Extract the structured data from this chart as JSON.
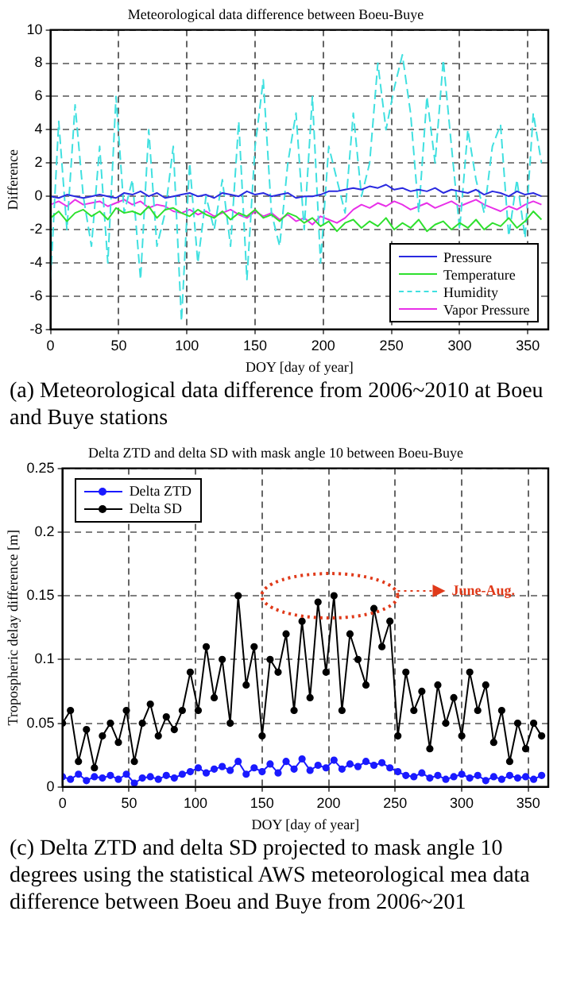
{
  "chart_data": [
    {
      "type": "line",
      "title": "Meteorological data difference between Boeu-Buye",
      "xlabel": "DOY [day of year]",
      "ylabel": "Difference",
      "xlim": [
        0,
        365
      ],
      "xticks": [
        0,
        50,
        100,
        150,
        200,
        250,
        300,
        350
      ],
      "ylim": [
        -8,
        10
      ],
      "yticks": [
        -8,
        -6,
        -4,
        -2,
        0,
        2,
        4,
        6,
        8,
        10
      ],
      "grid": true,
      "legend": "bottom right",
      "marker": "none",
      "x": [
        0,
        6,
        12,
        18,
        24,
        30,
        36,
        42,
        48,
        54,
        60,
        66,
        72,
        78,
        84,
        90,
        96,
        102,
        108,
        114,
        120,
        126,
        132,
        138,
        144,
        150,
        156,
        162,
        168,
        174,
        180,
        186,
        192,
        198,
        204,
        210,
        216,
        222,
        228,
        234,
        240,
        246,
        252,
        258,
        264,
        270,
        276,
        282,
        288,
        294,
        300,
        306,
        312,
        318,
        324,
        330,
        336,
        342,
        348,
        354,
        360
      ],
      "series": [
        {
          "name": "Pressure",
          "color": "#2a2ae0",
          "values": [
            0,
            -0.1,
            0.1,
            0,
            -0.1,
            0,
            0.1,
            0,
            -0.1,
            0.2,
            0.1,
            0.3,
            0,
            0.2,
            -0.1,
            0,
            0.1,
            0.2,
            0,
            0.1,
            -0.1,
            0.2,
            0.1,
            0,
            0.3,
            0.1,
            0.2,
            0,
            0.1,
            0.2,
            -0.1,
            0,
            0,
            0.1,
            0.3,
            0.3,
            0.4,
            0.5,
            0.4,
            0.6,
            0.5,
            0.7,
            0.4,
            0.5,
            0.3,
            0.4,
            0.3,
            0.5,
            0.2,
            0.4,
            0.3,
            0.2,
            0.4,
            0.1,
            0.3,
            0.2,
            0,
            0.3,
            0.1,
            0.2,
            0
          ]
        },
        {
          "name": "Temperature",
          "color": "#2ee02e",
          "values": [
            -1.3,
            -0.9,
            -1.5,
            -1,
            -0.8,
            -1.2,
            -0.9,
            -1.4,
            -0.7,
            -1,
            -0.9,
            -1.1,
            -0.6,
            -1.3,
            -0.8,
            -0.7,
            -1,
            -1.2,
            -0.8,
            -1.1,
            -1.3,
            -0.9,
            -1.4,
            -1,
            -1.2,
            -0.8,
            -1.3,
            -1.1,
            -1.5,
            -1,
            -1.2,
            -1.6,
            -1.3,
            -1.8,
            -1.5,
            -2.1,
            -1.6,
            -1.4,
            -1.9,
            -1.5,
            -1.8,
            -1.3,
            -2,
            -1.6,
            -1.9,
            -1.4,
            -2.1,
            -1.7,
            -1.5,
            -2,
            -1.6,
            -1.9,
            -1.4,
            -2,
            -1.6,
            -1.8,
            -1.3,
            -1.9,
            -1.5,
            -0.9,
            -1.4
          ]
        },
        {
          "name": "Humidity",
          "color": "#40e0e0",
          "line_style": "dashed",
          "values": [
            -5,
            4.5,
            -2,
            5.5,
            0,
            -3,
            3,
            -4,
            6,
            -1,
            1,
            -5,
            4,
            -3,
            -1,
            3,
            -7.5,
            2,
            -4,
            0,
            -2,
            1,
            -3,
            4.5,
            -5,
            3,
            7,
            -1,
            -3,
            2,
            5,
            -2,
            6,
            -4,
            3,
            1,
            -1,
            5,
            0,
            2,
            8,
            4,
            6.5,
            8.5,
            5,
            -1,
            6,
            2,
            8.2,
            3,
            -2,
            4,
            1,
            -1,
            3,
            4.3,
            -2.4,
            1,
            -2.5,
            5,
            2
          ]
        },
        {
          "name": "Vapor Pressure",
          "color": "#e830e8",
          "values": [
            -0.5,
            -0.3,
            -0.6,
            -0.2,
            -0.5,
            -0.4,
            -0.3,
            -0.6,
            -0.4,
            -0.2,
            -0.5,
            -0.3,
            -0.7,
            -0.5,
            -0.6,
            -0.9,
            -1,
            -0.8,
            -1.1,
            -0.9,
            -1.2,
            -1,
            -0.8,
            -1.1,
            -1.3,
            -0.9,
            -1.2,
            -1,
            -1.4,
            -1.1,
            -1.5,
            -1.3,
            -1.7,
            -1.2,
            -1.4,
            -1.6,
            -1.3,
            -0.8,
            -0.5,
            -0.7,
            -0.4,
            -0.6,
            -0.3,
            -0.5,
            -0.8,
            -0.6,
            -0.4,
            -0.7,
            -0.5,
            -0.3,
            -0.6,
            -0.4,
            -0.2,
            -0.5,
            -0.7,
            -0.9,
            -0.6,
            -0.8,
            -0.5,
            -0.3,
            -0.5
          ]
        }
      ],
      "annotations": [
        "(a) Meteorological data difference from 2006~2010 at Boeu and Buye stations"
      ]
    },
    {
      "type": "line",
      "title": "Delta ZTD and delta SD with mask angle 10 between Boeu-Buye",
      "xlabel": "DOY [day of year]",
      "ylabel": "Tropospheric delay difference [m]",
      "xlim": [
        0,
        365
      ],
      "xticks": [
        0,
        50,
        100,
        150,
        200,
        250,
        300,
        350
      ],
      "ylim": [
        0,
        0.25
      ],
      "yticks": [
        0,
        0.05,
        0.1,
        0.15,
        0.2,
        0.25
      ],
      "grid": true,
      "legend": "top left",
      "marker": "circle",
      "x": [
        0,
        6,
        12,
        18,
        24,
        30,
        36,
        42,
        48,
        54,
        60,
        66,
        72,
        78,
        84,
        90,
        96,
        102,
        108,
        114,
        120,
        126,
        132,
        138,
        144,
        150,
        156,
        162,
        168,
        174,
        180,
        186,
        192,
        198,
        204,
        210,
        216,
        222,
        228,
        234,
        240,
        246,
        252,
        258,
        264,
        270,
        276,
        282,
        288,
        294,
        300,
        306,
        312,
        318,
        324,
        330,
        336,
        342,
        348,
        354,
        360
      ],
      "series": [
        {
          "name": "Delta ZTD",
          "color": "#1a1aff",
          "values": [
            0.008,
            0.006,
            0.01,
            0.005,
            0.008,
            0.007,
            0.009,
            0.006,
            0.01,
            0.003,
            0.007,
            0.008,
            0.006,
            0.009,
            0.007,
            0.01,
            0.012,
            0.015,
            0.011,
            0.014,
            0.016,
            0.013,
            0.02,
            0.01,
            0.015,
            0.012,
            0.018,
            0.011,
            0.02,
            0.014,
            0.022,
            0.013,
            0.017,
            0.015,
            0.021,
            0.014,
            0.018,
            0.016,
            0.02,
            0.017,
            0.019,
            0.015,
            0.012,
            0.009,
            0.008,
            0.011,
            0.007,
            0.009,
            0.006,
            0.008,
            0.01,
            0.007,
            0.009,
            0.005,
            0.008,
            0.006,
            0.009,
            0.007,
            0.008,
            0.006,
            0.009
          ]
        },
        {
          "name": "Delta SD",
          "color": "#000000",
          "values": [
            0.05,
            0.06,
            0.02,
            0.045,
            0.015,
            0.04,
            0.05,
            0.035,
            0.06,
            0.02,
            0.05,
            0.065,
            0.04,
            0.055,
            0.045,
            0.06,
            0.09,
            0.06,
            0.11,
            0.07,
            0.1,
            0.05,
            0.15,
            0.08,
            0.11,
            0.04,
            0.1,
            0.09,
            0.12,
            0.06,
            0.13,
            0.07,
            0.145,
            0.09,
            0.15,
            0.06,
            0.12,
            0.1,
            0.08,
            0.14,
            0.11,
            0.13,
            0.04,
            0.09,
            0.06,
            0.075,
            0.03,
            0.08,
            0.05,
            0.07,
            0.04,
            0.09,
            0.06,
            0.08,
            0.035,
            0.06,
            0.02,
            0.05,
            0.03,
            0.05,
            0.04
          ]
        }
      ],
      "annotations": [
        "June-Aug.",
        "(c) Delta ZTD and delta SD projected to mask angle 10 degrees using the statistical AWS meteorological mea data difference between Boeu and Buye from 2006~201"
      ]
    }
  ]
}
